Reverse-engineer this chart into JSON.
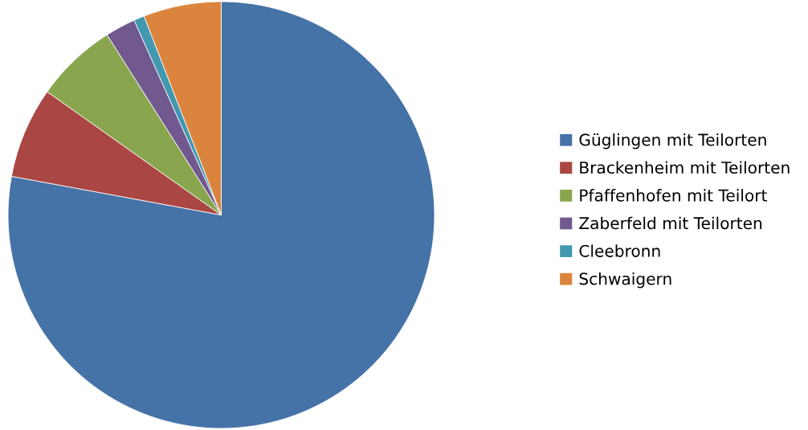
{
  "chart_data": {
    "type": "pie",
    "categories": [
      "Güglingen mit Teilorten",
      "Brackenheim mit Teilorten",
      "Pfaffenhofen mit Teilort",
      "Zaberfeld mit Teilorten",
      "Cleebronn",
      "Schwaigern"
    ],
    "values": [
      77.9,
      6.9,
      6.2,
      2.3,
      0.8,
      5.9
    ],
    "colors": [
      "#4572a7",
      "#aa4643",
      "#89a54e",
      "#71588f",
      "#4198af",
      "#db843d"
    ],
    "legend": "right"
  }
}
